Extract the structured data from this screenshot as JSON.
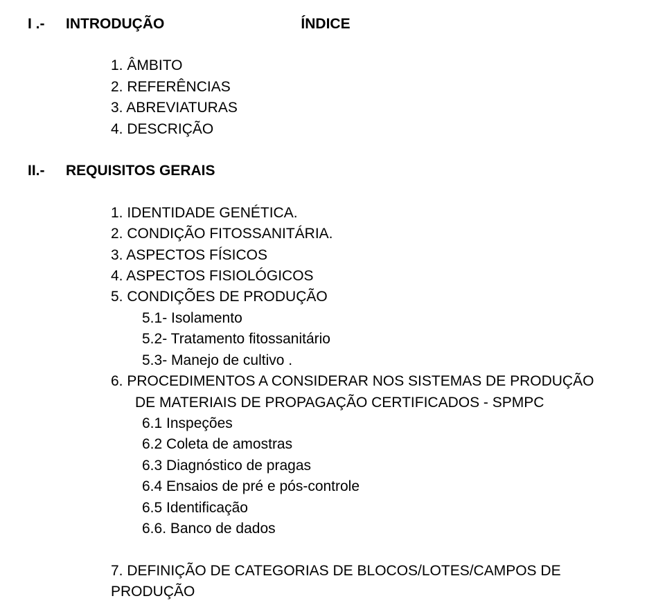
{
  "header": {
    "indice": "ÍNDICE"
  },
  "section1": {
    "roman": "I .-",
    "title": "INTRODUÇÃO",
    "items": {
      "i1": "1. ÂMBITO",
      "i2": "2. REFERÊNCIAS",
      "i3": "3. ABREVIATURAS",
      "i4": "4. DESCRIÇÃO"
    }
  },
  "section2": {
    "roman": "II.-",
    "title": "REQUISITOS GERAIS",
    "items": {
      "i1": "1. IDENTIDADE GENÉTICA.",
      "i2": "2. CONDIÇÃO FITOSSANITÁRIA.",
      "i3": "3. ASPECTOS FÍSICOS",
      "i4": "4. ASPECTOS FISIOLÓGICOS",
      "i5": "5. CONDIÇÕES DE PRODUÇÃO",
      "sub5": {
        "s1": "5.1- Isolamento",
        "s2": "5.2- Tratamento fitossanitário",
        "s3": "5.3- Manejo de cultivo                                                           ."
      },
      "i6a": "6. PROCEDIMENTOS A CONSIDERAR NOS SISTEMAS DE PRODUÇÃO",
      "i6b": "DE MATERIAIS DE PROPAGAÇÃO CERTIFICADOS - SPMPC",
      "sub6": {
        "s1": "6.1 Inspeções",
        "s2": "6.2 Coleta de amostras",
        "s3": "6.3 Diagnóstico de pragas",
        "s4": "6.4 Ensaios de pré e pós-controle",
        "s5": "6.5 Identificação",
        "s6": "6.6. Banco de dados"
      },
      "i7a": "7.   DEFINIÇÃO  DE  CATEGORIAS  DE  BLOCOS/LOTES/CAMPOS  DE",
      "i7b": "PRODUÇÃO"
    }
  },
  "style": {
    "font_family": "Arial",
    "font_size_pt": 16,
    "text_color": "#000000",
    "background_color": "#ffffff",
    "bold_weight": "bold"
  }
}
